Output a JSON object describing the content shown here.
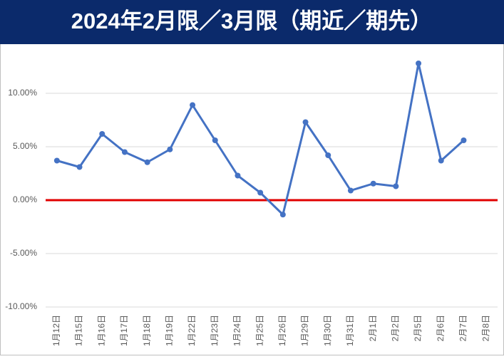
{
  "chart_data": {
    "type": "line",
    "title": "2024年2月限／3月限（期近／期先）",
    "categories": [
      "1月12日",
      "1月15日",
      "1月16日",
      "1月17日",
      "1月18日",
      "1月19日",
      "1月22日",
      "1月23日",
      "1月24日",
      "1月25日",
      "1月26日",
      "1月29日",
      "1月30日",
      "1月31日",
      "2月1日",
      "2月2日",
      "2月5日",
      "2月6日",
      "2月7日",
      "2月8日"
    ],
    "values": [
      3.7,
      3.1,
      6.2,
      4.5,
      3.55,
      4.75,
      8.9,
      5.6,
      2.3,
      0.7,
      -1.35,
      7.3,
      4.2,
      0.9,
      1.55,
      1.3,
      12.8,
      3.7,
      5.6,
      null
    ],
    "color": "#4472c4",
    "ylim": [
      -10,
      14
    ],
    "yticks": [
      {
        "value": -10,
        "label": "-10.00%"
      },
      {
        "value": -5,
        "label": "-5.00%"
      },
      {
        "value": 0,
        "label": "0.00%"
      },
      {
        "value": 5,
        "label": "5.00%"
      },
      {
        "value": 10,
        "label": "10.00%"
      }
    ],
    "grid": true,
    "zero_line_color": "#e00000"
  }
}
